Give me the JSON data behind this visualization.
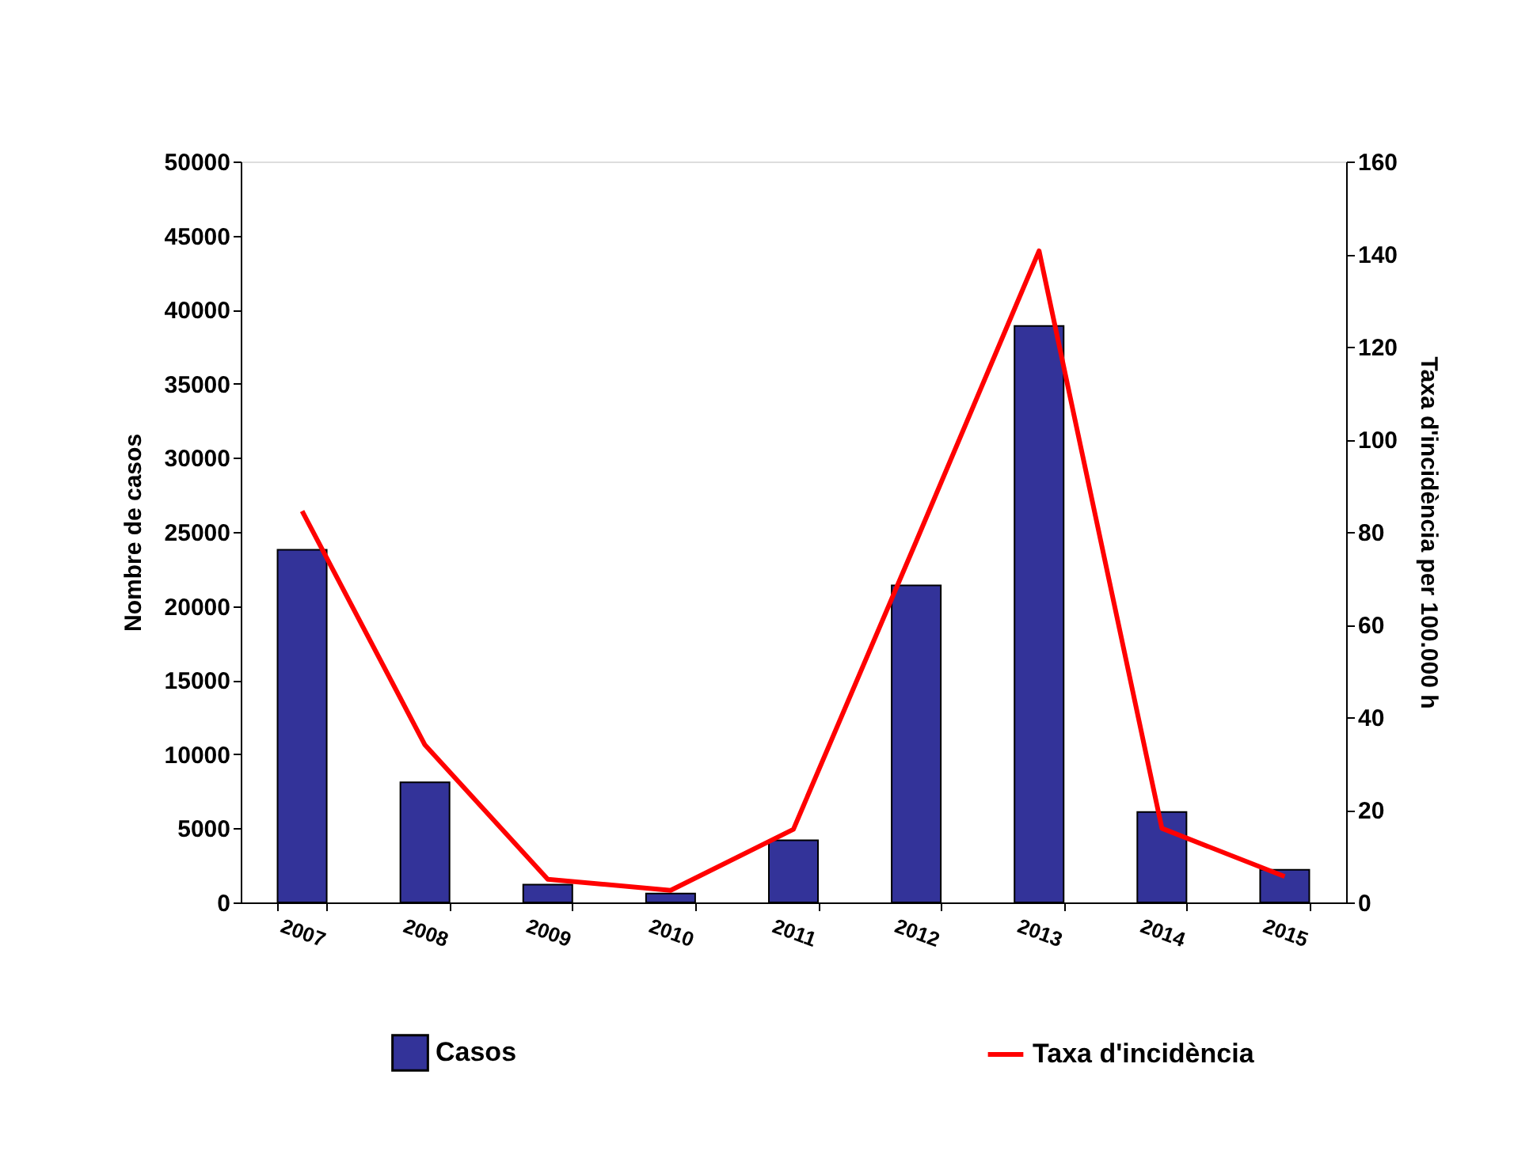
{
  "chart_data": {
    "type": "bar",
    "categories": [
      "2007",
      "2008",
      "2009",
      "2010",
      "2011",
      "2012",
      "2013",
      "2014",
      "2015"
    ],
    "ylabel": "Nombre de casos",
    "y2label": "Taxa d'incidència per 100.000 h",
    "ylim": [
      0,
      50000
    ],
    "yticks": [
      0,
      5000,
      10000,
      15000,
      20000,
      25000,
      30000,
      35000,
      40000,
      45000,
      50000
    ],
    "y2lim": [
      0,
      160
    ],
    "y2ticks": [
      0,
      20,
      40,
      60,
      80,
      100,
      120,
      140,
      160
    ],
    "grid": false,
    "legend": "bottom",
    "series": [
      {
        "name": "Casos",
        "color": "#333399",
        "values": [
          23800,
          8100,
          1200,
          600,
          4200,
          21400,
          38900,
          6100,
          2200
        ]
      },
      {
        "name": "Taxa d'incidència",
        "type": "line",
        "axis": "y2",
        "color": "#ff0000",
        "values": [
          84.5,
          34,
          5,
          2.6,
          15.8,
          78,
          140.7,
          16,
          5.6
        ]
      }
    ]
  }
}
